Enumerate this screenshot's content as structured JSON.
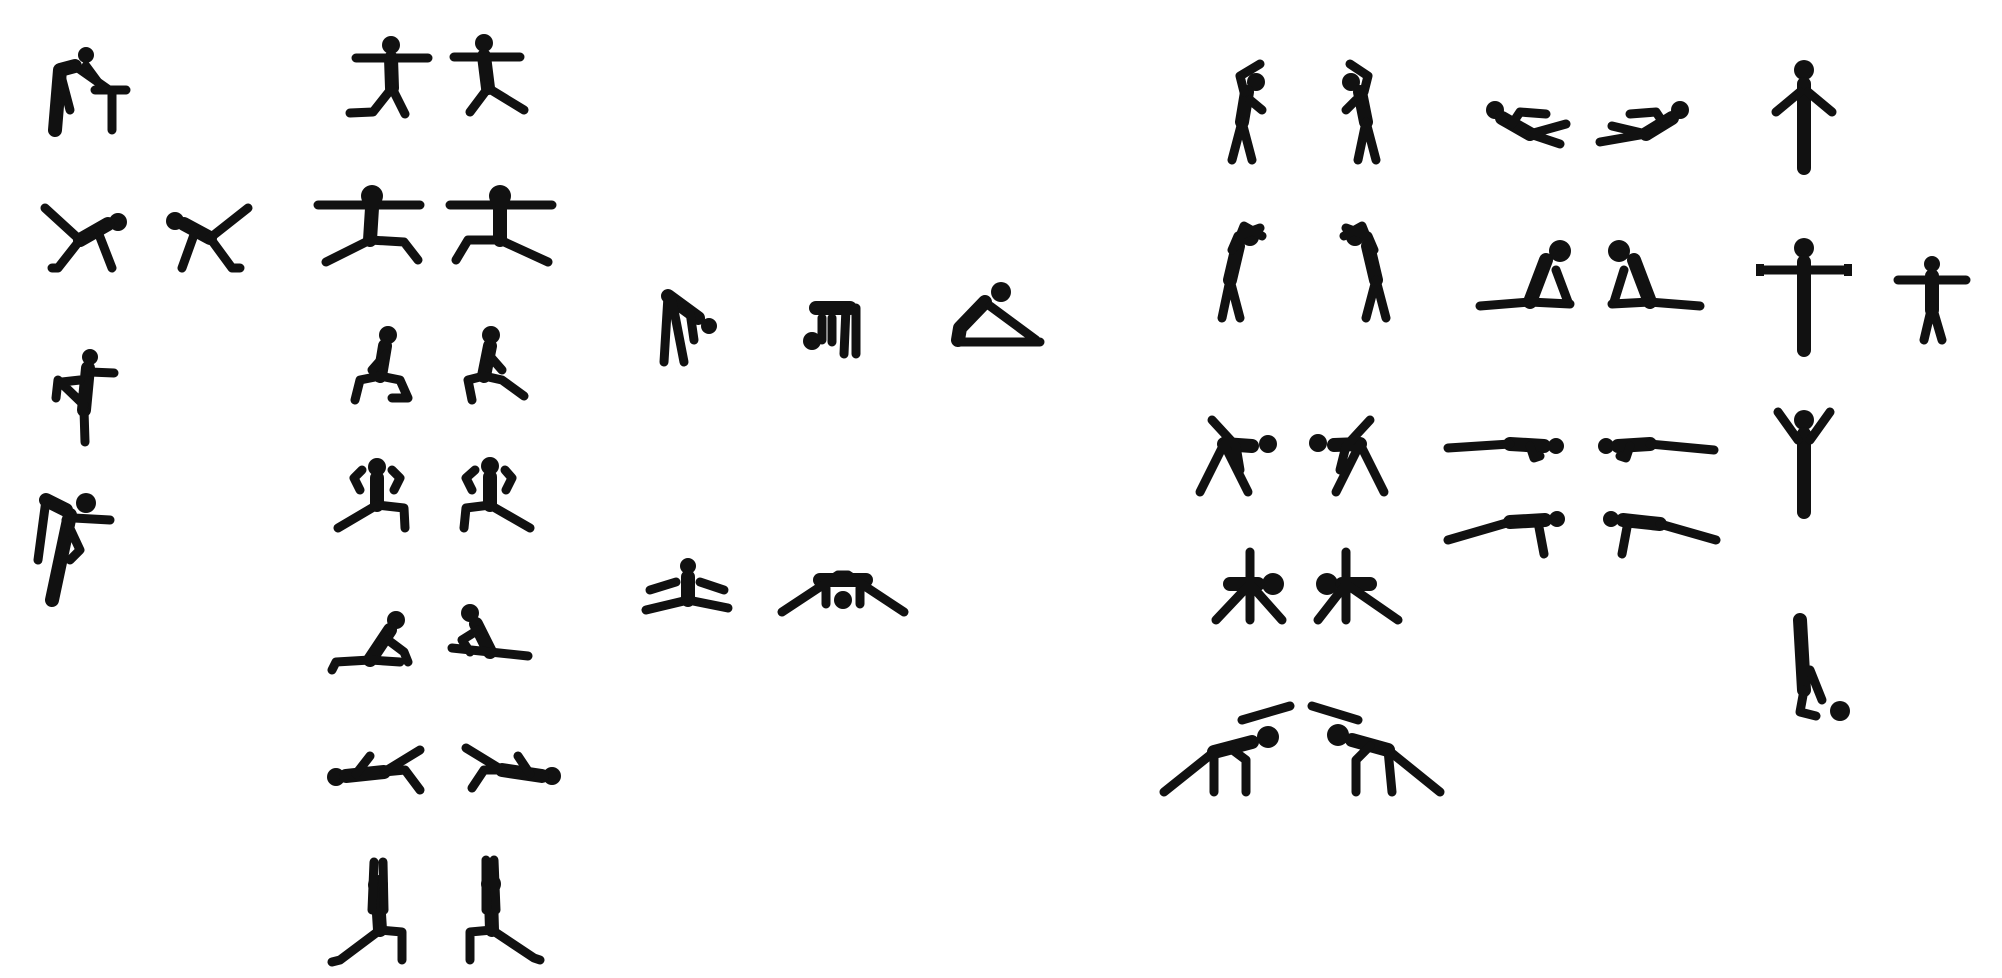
{
  "sheet": {
    "background": "#ffffff",
    "ink": "#111111"
  },
  "figures": [
    {
      "id": "fig-hamstring-bench",
      "icon": "hamstring-stretch-at-bench-icon"
    },
    {
      "id": "fig-lunge-arms-out-l",
      "icon": "lunge-arms-out-left-icon"
    },
    {
      "id": "fig-lunge-arms-out-r",
      "icon": "lunge-arms-out-right-icon"
    },
    {
      "id": "fig-donkey-kick-l",
      "icon": "donkey-kick-left-icon"
    },
    {
      "id": "fig-donkey-kick-r",
      "icon": "donkey-kick-right-icon"
    },
    {
      "id": "fig-warrior-wide-l",
      "icon": "warrior-wide-stance-left-icon"
    },
    {
      "id": "fig-warrior-wide-r",
      "icon": "warrior-wide-stance-right-icon"
    },
    {
      "id": "fig-quad-stretch",
      "icon": "standing-quad-stretch-icon"
    },
    {
      "id": "fig-standing-split",
      "icon": "standing-leg-hold-icon"
    },
    {
      "id": "fig-kneeling-lunge-l",
      "icon": "kneeling-lunge-left-icon"
    },
    {
      "id": "fig-kneeling-lunge-r",
      "icon": "kneeling-lunge-right-icon"
    },
    {
      "id": "fig-side-lunge-l",
      "icon": "side-lunge-left-icon"
    },
    {
      "id": "fig-side-lunge-r",
      "icon": "side-lunge-right-icon"
    },
    {
      "id": "fig-seated-twist-l",
      "icon": "seated-twist-left-icon"
    },
    {
      "id": "fig-seated-twist-r",
      "icon": "seated-twist-right-icon"
    },
    {
      "id": "fig-lying-stretch-l",
      "icon": "lying-leg-stretch-left-icon"
    },
    {
      "id": "fig-lying-stretch-r",
      "icon": "lying-leg-stretch-right-icon"
    },
    {
      "id": "fig-low-lunge-l",
      "icon": "low-lunge-arms-up-left-icon"
    },
    {
      "id": "fig-low-lunge-r",
      "icon": "low-lunge-arms-up-right-icon"
    },
    {
      "id": "fig-forward-bend",
      "icon": "standing-forward-bend-icon"
    },
    {
      "id": "fig-forward-fold",
      "icon": "deep-forward-fold-icon"
    },
    {
      "id": "fig-seated-forward",
      "icon": "seated-forward-bend-icon"
    },
    {
      "id": "fig-straddle-seated",
      "icon": "seated-straddle-icon"
    },
    {
      "id": "fig-straddle-fold",
      "icon": "straddle-forward-fold-icon"
    },
    {
      "id": "fig-side-bend-l",
      "icon": "standing-side-bend-left-icon"
    },
    {
      "id": "fig-side-bend-r",
      "icon": "standing-side-bend-right-icon"
    },
    {
      "id": "fig-overhead-side-l",
      "icon": "overhead-side-stretch-left-icon"
    },
    {
      "id": "fig-overhead-side-r",
      "icon": "overhead-side-stretch-right-icon"
    },
    {
      "id": "fig-triangle-l",
      "icon": "triangle-pose-left-icon"
    },
    {
      "id": "fig-triangle-r",
      "icon": "triangle-pose-right-icon"
    },
    {
      "id": "fig-wide-bend-l",
      "icon": "wide-stance-bend-left-icon"
    },
    {
      "id": "fig-wide-bend-r",
      "icon": "wide-stance-bend-right-icon"
    },
    {
      "id": "fig-arch-l",
      "icon": "side-arch-stretch-left-icon"
    },
    {
      "id": "fig-arch-r",
      "icon": "side-arch-stretch-right-icon"
    },
    {
      "id": "fig-crunch-l",
      "icon": "v-sit-crunch-left-icon"
    },
    {
      "id": "fig-crunch-r",
      "icon": "v-sit-crunch-right-icon"
    },
    {
      "id": "fig-cobra-l",
      "icon": "cobra-stretch-left-icon"
    },
    {
      "id": "fig-cobra-r",
      "icon": "cobra-stretch-right-icon"
    },
    {
      "id": "fig-plank-l",
      "icon": "plank-left-icon"
    },
    {
      "id": "fig-plank-r",
      "icon": "plank-right-icon"
    },
    {
      "id": "fig-pushup-l",
      "icon": "push-up-left-icon"
    },
    {
      "id": "fig-pushup-r",
      "icon": "push-up-right-icon"
    },
    {
      "id": "fig-stand-arms-down",
      "icon": "standing-arms-down-icon"
    },
    {
      "id": "fig-stand-t-large",
      "icon": "standing-t-pose-icon"
    },
    {
      "id": "fig-stand-t-small",
      "icon": "standing-t-pose-small-icon"
    },
    {
      "id": "fig-stand-arms-up",
      "icon": "standing-arms-up-icon"
    },
    {
      "id": "fig-inverted-hang",
      "icon": "shoulder-stand-icon"
    }
  ]
}
